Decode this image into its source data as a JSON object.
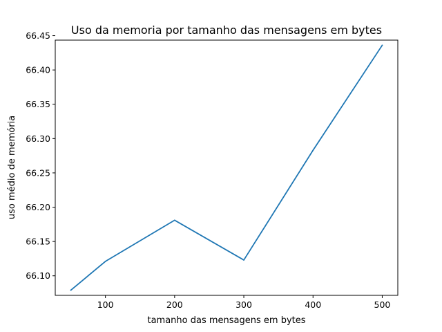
{
  "chart_data": {
    "type": "line",
    "title": "Uso da memoria por tamanho das mensagens em bytes",
    "xlabel": "tamanho das mensagens em bytes",
    "ylabel": "uso médio de memória",
    "x": [
      50,
      100,
      200,
      300,
      400,
      500
    ],
    "series": [
      {
        "values": [
          66.079,
          66.121,
          66.181,
          66.123,
          66.283,
          66.436
        ],
        "color": "#1f77b4"
      }
    ],
    "xlim": [
      27.5,
      522.5
    ],
    "ylim": [
      66.0715,
      66.4435
    ],
    "xticks": [
      100,
      200,
      300,
      400,
      500
    ],
    "xtick_labels": [
      "100",
      "200",
      "300",
      "400",
      "500"
    ],
    "yticks": [
      66.1,
      66.15,
      66.2,
      66.25,
      66.3,
      66.35,
      66.4,
      66.45
    ],
    "ytick_labels": [
      "66.10",
      "66.15",
      "66.20",
      "66.25",
      "66.30",
      "66.35",
      "66.40",
      "66.45"
    ],
    "grid": false,
    "legend": false
  }
}
